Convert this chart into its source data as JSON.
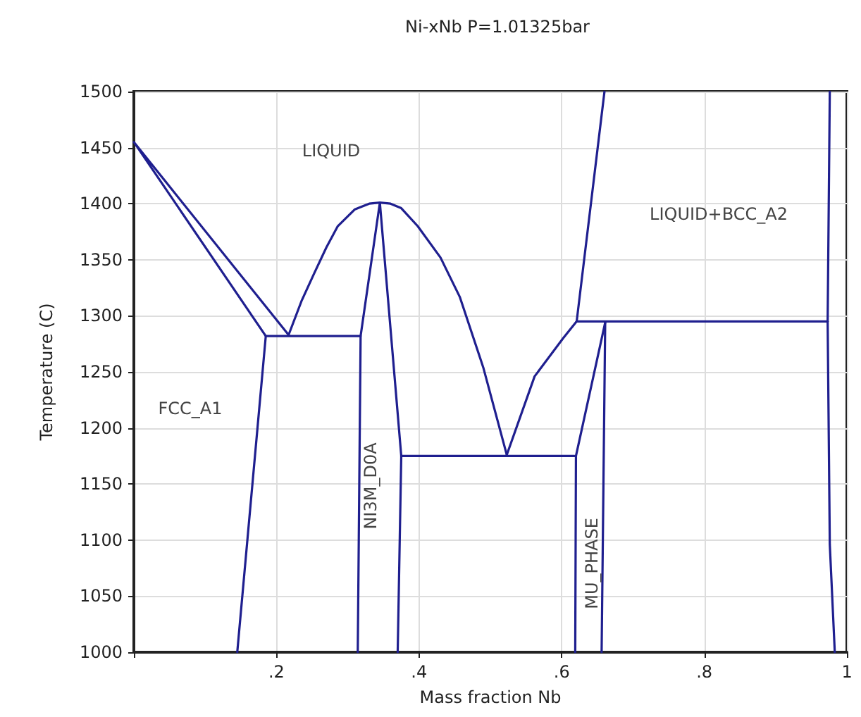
{
  "chart_data": {
    "type": "line",
    "title": "Ni-xNb P=1.01325bar",
    "xlabel": "Mass fraction Nb",
    "ylabel": "Temperature (C)",
    "xlim": [
      0,
      1
    ],
    "xticks": [
      {
        "value": 0,
        "label": null
      },
      {
        "value": 0.2,
        "label": ".2"
      },
      {
        "value": 0.4,
        "label": ".4"
      },
      {
        "value": 0.6,
        "label": ".6"
      },
      {
        "value": 0.8,
        "label": ".8"
      },
      1
    ],
    "ylim": [
      1000,
      1500
    ],
    "yticks": [
      1000,
      1050,
      1100,
      1150,
      1200,
      1250,
      1300,
      1350,
      1400,
      1450,
      1500
    ],
    "grid": true,
    "marker": "none",
    "line_style": "solid",
    "annotations": [
      "LIQUID",
      "FCC_A1",
      "LIQUID+BCC_A2",
      "NI3M_D0A",
      "MU_PHASE"
    ],
    "series": [
      {
        "color": "#1f1f8f",
        "x": [
          0.217,
          0,
          0.185
        ],
        "values": [
          1283,
          1455,
          1282
        ]
      },
      {
        "color": "#1f1f8f",
        "x": [
          0.145,
          0.185,
          0.318
        ],
        "values": [
          1000,
          1282,
          1282
        ]
      },
      {
        "color": "#1f1f8f",
        "x": [
          0.314,
          0.318,
          0.345,
          0.375,
          0.37
        ],
        "values": [
          1000,
          1282,
          1401,
          1175,
          1000
        ]
      },
      {
        "color": "#1f1f8f",
        "x": [
          0.217,
          0.235,
          0.253,
          0.27,
          0.286,
          0.31,
          0.33,
          0.345,
          0.36,
          0.375,
          0.398,
          0.43,
          0.457,
          0.49,
          0.523
        ],
        "values": [
          1283,
          1313,
          1338,
          1361,
          1380,
          1395,
          1400,
          1401,
          1400,
          1396,
          1380,
          1352,
          1317,
          1254,
          1176
        ]
      },
      {
        "color": "#1f1f8f",
        "x": [
          0.375,
          0.618
        ],
        "values": [
          1175,
          1175
        ]
      },
      {
        "color": "#1f1f8f",
        "x": [
          0.523,
          0.562,
          0.602,
          0.621
        ],
        "values": [
          1176,
          1246,
          1280,
          1295
        ]
      },
      {
        "color": "#1f1f8f",
        "x": [
          0.621,
          0.66
        ],
        "values": [
          1295,
          1500
        ]
      },
      {
        "color": "#1f1f8f",
        "x": [
          0.621,
          0.973
        ],
        "values": [
          1295,
          1295
        ]
      },
      {
        "color": "#1f1f8f",
        "x": [
          0.661,
          0.62,
          0.619
        ],
        "values": [
          1294,
          1175,
          1000
        ]
      },
      {
        "color": "#1f1f8f",
        "x": [
          0.661,
          0.656
        ],
        "values": [
          1294,
          1000
        ]
      },
      {
        "color": "#1f1f8f",
        "x": [
          0.976,
          0.973,
          0.976,
          0.983
        ],
        "values": [
          1500,
          1295,
          1096,
          1000
        ]
      }
    ]
  }
}
